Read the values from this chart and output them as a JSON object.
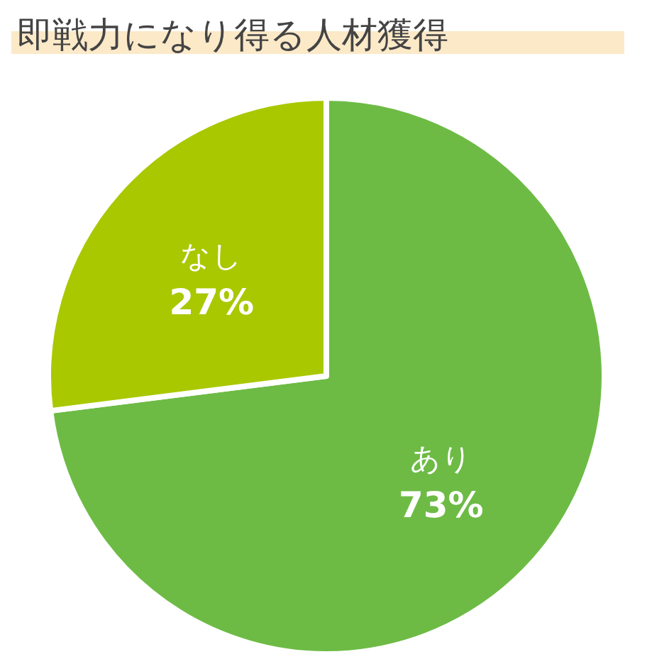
{
  "chart_data": {
    "type": "pie",
    "title": "即戦力になり得る人材獲得",
    "categories": [
      "あり",
      "なし"
    ],
    "values": [
      73,
      27
    ],
    "colors": [
      "#6dbb45",
      "#a9c800"
    ],
    "value_labels": [
      "73%",
      "27%"
    ],
    "legend": false
  }
}
